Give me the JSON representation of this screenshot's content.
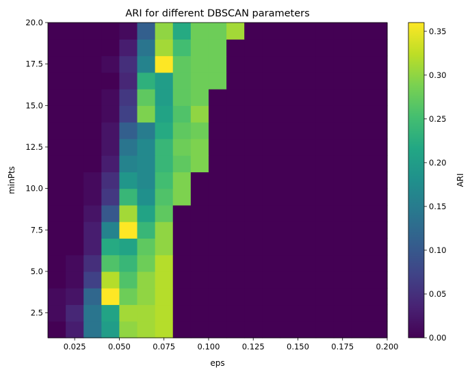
{
  "chart_data": {
    "type": "heatmap",
    "title": "ARI for different DBSCAN parameters",
    "xlabel": "eps",
    "ylabel": "minPts",
    "colorbar_label": "ARI",
    "colormap": "viridis",
    "xlim": [
      0.01,
      0.2
    ],
    "ylim": [
      1,
      20
    ],
    "x_ticks": [
      "0.025",
      "0.050",
      "0.075",
      "0.100",
      "0.125",
      "0.150",
      "0.175",
      "0.200"
    ],
    "y_ticks": [
      "2.5",
      "5.0",
      "7.5",
      "10.0",
      "12.5",
      "15.0",
      "17.5",
      "20.0"
    ],
    "colorbar_ticks": [
      "0.00",
      "0.05",
      "0.10",
      "0.15",
      "0.20",
      "0.25",
      "0.30",
      "0.35"
    ],
    "value_range": [
      0,
      0.36
    ],
    "eps_values": [
      0.01,
      0.02,
      0.03,
      0.04,
      0.05,
      0.06,
      0.07,
      0.08,
      0.09,
      0.1,
      0.11,
      0.12,
      0.13,
      0.14,
      0.15,
      0.16,
      0.17,
      0.18,
      0.19
    ],
    "minpts_values": [
      1,
      2,
      3,
      4,
      5,
      6,
      7,
      8,
      9,
      10,
      11,
      12,
      13,
      14,
      15,
      16,
      17,
      18,
      19
    ],
    "z": [
      [
        0.0,
        0.03,
        0.14,
        0.2,
        0.3,
        0.31,
        0.32,
        0.0,
        0.0,
        0.0,
        0.0,
        0.0,
        0.0,
        0.0,
        0.0,
        0.0,
        0.0,
        0.0,
        0.0
      ],
      [
        0.01,
        0.04,
        0.14,
        0.21,
        0.31,
        0.31,
        0.32,
        0.0,
        0.0,
        0.0,
        0.0,
        0.0,
        0.0,
        0.0,
        0.0,
        0.0,
        0.0,
        0.0,
        0.0
      ],
      [
        0.01,
        0.02,
        0.12,
        0.36,
        0.28,
        0.3,
        0.32,
        0.0,
        0.0,
        0.0,
        0.0,
        0.0,
        0.0,
        0.0,
        0.0,
        0.0,
        0.0,
        0.0,
        0.0
      ],
      [
        0.0,
        0.01,
        0.07,
        0.32,
        0.26,
        0.3,
        0.32,
        0.0,
        0.0,
        0.0,
        0.0,
        0.0,
        0.0,
        0.0,
        0.0,
        0.0,
        0.0,
        0.0,
        0.0
      ],
      [
        0.0,
        0.01,
        0.05,
        0.26,
        0.24,
        0.28,
        0.32,
        0.0,
        0.0,
        0.0,
        0.0,
        0.0,
        0.0,
        0.0,
        0.0,
        0.0,
        0.0,
        0.0,
        0.0
      ],
      [
        0.0,
        0.0,
        0.03,
        0.22,
        0.21,
        0.27,
        0.3,
        0.0,
        0.0,
        0.0,
        0.0,
        0.0,
        0.0,
        0.0,
        0.0,
        0.0,
        0.0,
        0.0,
        0.0
      ],
      [
        0.0,
        0.0,
        0.03,
        0.16,
        0.36,
        0.24,
        0.3,
        0.0,
        0.0,
        0.0,
        0.0,
        0.0,
        0.0,
        0.0,
        0.0,
        0.0,
        0.0,
        0.0,
        0.0
      ],
      [
        0.0,
        0.0,
        0.02,
        0.1,
        0.31,
        0.21,
        0.27,
        0.0,
        0.0,
        0.0,
        0.0,
        0.0,
        0.0,
        0.0,
        0.0,
        0.0,
        0.0,
        0.0,
        0.0
      ],
      [
        0.0,
        0.0,
        0.01,
        0.06,
        0.24,
        0.18,
        0.26,
        0.29,
        0.0,
        0.0,
        0.0,
        0.0,
        0.0,
        0.0,
        0.0,
        0.0,
        0.0,
        0.0,
        0.0
      ],
      [
        0.0,
        0.0,
        0.01,
        0.05,
        0.19,
        0.17,
        0.25,
        0.29,
        0.0,
        0.0,
        0.0,
        0.0,
        0.0,
        0.0,
        0.0,
        0.0,
        0.0,
        0.0,
        0.0
      ],
      [
        0.0,
        0.0,
        0.0,
        0.03,
        0.16,
        0.17,
        0.24,
        0.27,
        0.29,
        0.0,
        0.0,
        0.0,
        0.0,
        0.0,
        0.0,
        0.0,
        0.0,
        0.0,
        0.0
      ],
      [
        0.0,
        0.0,
        0.0,
        0.02,
        0.14,
        0.17,
        0.24,
        0.28,
        0.29,
        0.0,
        0.0,
        0.0,
        0.0,
        0.0,
        0.0,
        0.0,
        0.0,
        0.0,
        0.0
      ],
      [
        0.0,
        0.0,
        0.0,
        0.02,
        0.11,
        0.15,
        0.22,
        0.27,
        0.28,
        0.0,
        0.0,
        0.0,
        0.0,
        0.0,
        0.0,
        0.0,
        0.0,
        0.0,
        0.0
      ],
      [
        0.0,
        0.0,
        0.0,
        0.01,
        0.07,
        0.29,
        0.21,
        0.26,
        0.3,
        0.0,
        0.0,
        0.0,
        0.0,
        0.0,
        0.0,
        0.0,
        0.0,
        0.0,
        0.0
      ],
      [
        0.0,
        0.0,
        0.0,
        0.01,
        0.06,
        0.27,
        0.2,
        0.27,
        0.28,
        0.0,
        0.0,
        0.0,
        0.0,
        0.0,
        0.0,
        0.0,
        0.0,
        0.0,
        0.0
      ],
      [
        0.0,
        0.0,
        0.0,
        0.0,
        0.04,
        0.23,
        0.2,
        0.27,
        0.28,
        0.28,
        0.0,
        0.0,
        0.0,
        0.0,
        0.0,
        0.0,
        0.0,
        0.0,
        0.0
      ],
      [
        0.0,
        0.0,
        0.0,
        0.01,
        0.05,
        0.16,
        0.36,
        0.27,
        0.28,
        0.28,
        0.0,
        0.0,
        0.0,
        0.0,
        0.0,
        0.0,
        0.0,
        0.0,
        0.0
      ],
      [
        0.0,
        0.0,
        0.0,
        0.0,
        0.03,
        0.14,
        0.31,
        0.25,
        0.28,
        0.28,
        0.0,
        0.0,
        0.0,
        0.0,
        0.0,
        0.0,
        0.0,
        0.0,
        0.0
      ],
      [
        0.0,
        0.0,
        0.0,
        0.0,
        0.01,
        0.11,
        0.3,
        0.22,
        0.28,
        0.28,
        0.31,
        0.0,
        0.0,
        0.0,
        0.0,
        0.0,
        0.0,
        0.0,
        0.0
      ]
    ]
  }
}
